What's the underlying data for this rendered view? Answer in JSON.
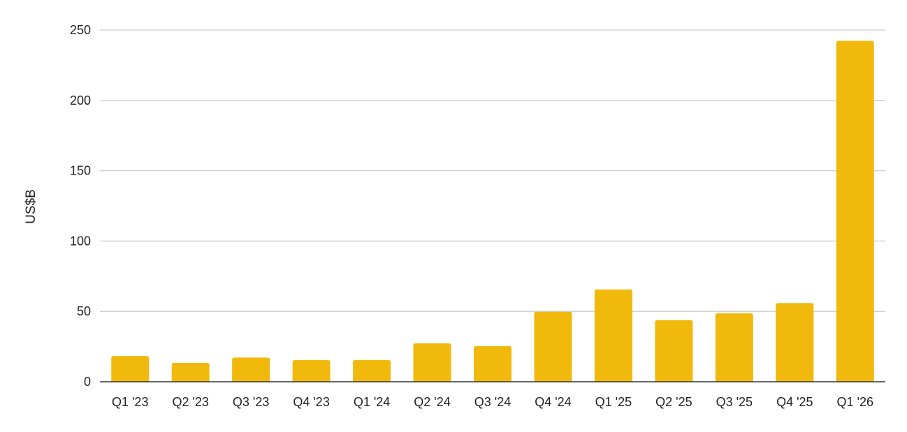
{
  "chart_data": {
    "type": "bar",
    "title": "",
    "xlabel": "",
    "ylabel": "US$B",
    "ylim": [
      0,
      250
    ],
    "yticks": [
      0,
      50,
      100,
      150,
      200,
      250
    ],
    "grid": true,
    "legend": "none",
    "bar_color": "#F1B90C",
    "categories": [
      "Q1 '23",
      "Q2 '23",
      "Q3 '23",
      "Q4 '23",
      "Q1 '24",
      "Q2 '24",
      "Q3 '24",
      "Q4 '24",
      "Q1 '25",
      "Q2 '25",
      "Q3 '25",
      "Q4 '25",
      "Q1 '26"
    ],
    "values": [
      18.3,
      13.4,
      17.2,
      15.4,
      15.4,
      27.3,
      25.3,
      49.7,
      65.6,
      43.8,
      48.7,
      55.9,
      242.3
    ]
  }
}
